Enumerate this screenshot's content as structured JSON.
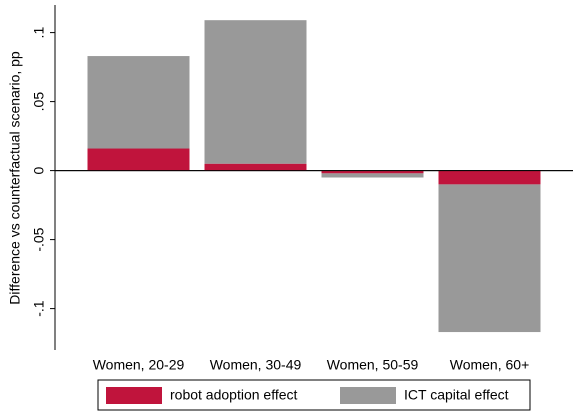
{
  "chart_data": {
    "type": "stacked-bar",
    "y_label": "Difference vs counterfactual scenario, pp",
    "categories": [
      "Women, 20-29",
      "Women, 30-49",
      "Women, 50-59",
      "Women, 60+"
    ],
    "series": [
      {
        "name": "robot adoption effect",
        "color": "#c0143c",
        "values": [
          0.016,
          0.005,
          -0.002,
          -0.01
        ]
      },
      {
        "name": "ICT capital effect",
        "color": "#999999",
        "values": [
          0.067,
          0.104,
          -0.003,
          -0.107
        ]
      }
    ],
    "ylim": [
      -0.13,
      0.12
    ],
    "yticks": [
      {
        "value": -0.1,
        "label": "-.1"
      },
      {
        "value": -0.05,
        "label": "-.05"
      },
      0,
      {
        "value": 0.05,
        "label": ".05"
      },
      {
        "value": 0.1,
        "label": ".1"
      }
    ],
    "legend": "bottom"
  }
}
